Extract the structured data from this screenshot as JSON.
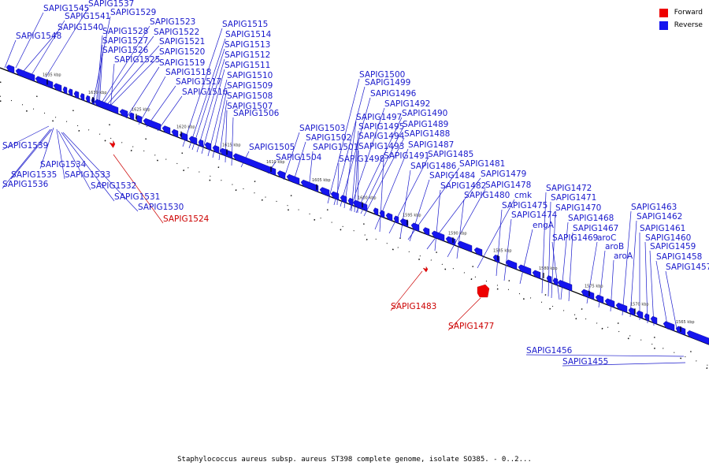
{
  "legend": {
    "forward_label": "Forward",
    "reverse_label": "Reverse",
    "forward_color": "#ee0000",
    "reverse_color": "#1515ee"
  },
  "colors": {
    "leader_forward": "#cc0000",
    "leader_reverse": "#1a1acc",
    "backbone": "#000000"
  },
  "caption": "Staphylococcus aureus subsp. aureus ST398 complete genome, isolate SO385. - 0..2...",
  "ticks": [
    "1635 kbp",
    "1630 kbp",
    "1625 kbp",
    "1620 kbp",
    "1615 kbp",
    "1610 kbp",
    "1605 kbp",
    "1600 kbp",
    "1595 kbp",
    "1590 kbp",
    "1585 kbp",
    "1580 kbp",
    "1575 kbp",
    "1570 kbp",
    "1565 kbp"
  ],
  "genes_reverse": [
    "SAPIG1545",
    "SAPIG1537",
    "SAPIG1541",
    "SAPIG1529",
    "SAPIG1540",
    "SAPIG1548",
    "SAPIG1523",
    "SAPIG1528",
    "SAPIG1522",
    "SAPIG1527",
    "SAPIG1521",
    "SAPIG1526",
    "SAPIG1520",
    "SAPIG1525",
    "SAPIG1519",
    "SAPIG1518",
    "SAPIG1517",
    "SAPIG1516",
    "SAPIG1515",
    "SAPIG1514",
    "SAPIG1513",
    "SAPIG1512",
    "SAPIG1511",
    "SAPIG1510",
    "SAPIG1509",
    "SAPIG1508",
    "SAPIG1507",
    "SAPIG1506",
    "SAPIG1505",
    "SAPIG1504",
    "SAPIG1503",
    "SAPIG1502",
    "SAPIG1501",
    "SAPIG1500",
    "SAPIG1499",
    "SAPIG1496",
    "SAPIG1492",
    "SAPIG1497",
    "SAPIG1490",
    "SAPIG1495",
    "SAPIG1489",
    "SAPIG1494",
    "SAPIG1488",
    "SAPIG1493",
    "SAPIG1487",
    "SAPIG1498",
    "SAPIG1491",
    "SAPIG1485",
    "SAPIG1486",
    "SAPIG1481",
    "SAPIG1484",
    "SAPIG1479",
    "SAPIG1482",
    "SAPIG1478",
    "SAPIG1480",
    "cmk",
    "SAPIG1475",
    "SAPIG1474",
    "engA",
    "SAPIG1472",
    "SAPIG1471",
    "SAPIG1470",
    "SAPIG1468",
    "SAPIG1467",
    "SAPIG1469",
    "aroC",
    "aroB",
    "aroA",
    "SAPIG1463",
    "SAPIG1462",
    "SAPIG1461",
    "SAPIG1460",
    "SAPIG1459",
    "SAPIG1458",
    "SAPIG1457"
  ],
  "genes_below": [
    "SAPIG1539",
    "SAPIG1534",
    "SAPIG1535",
    "SAPIG1533",
    "SAPIG1536",
    "SAPIG1532",
    "SAPIG1531",
    "SAPIG1530",
    "SAPIG1456",
    "SAPIG1455"
  ],
  "genes_forward": [
    "SAPIG1524",
    "SAPIG1483",
    "SAPIG1477"
  ]
}
